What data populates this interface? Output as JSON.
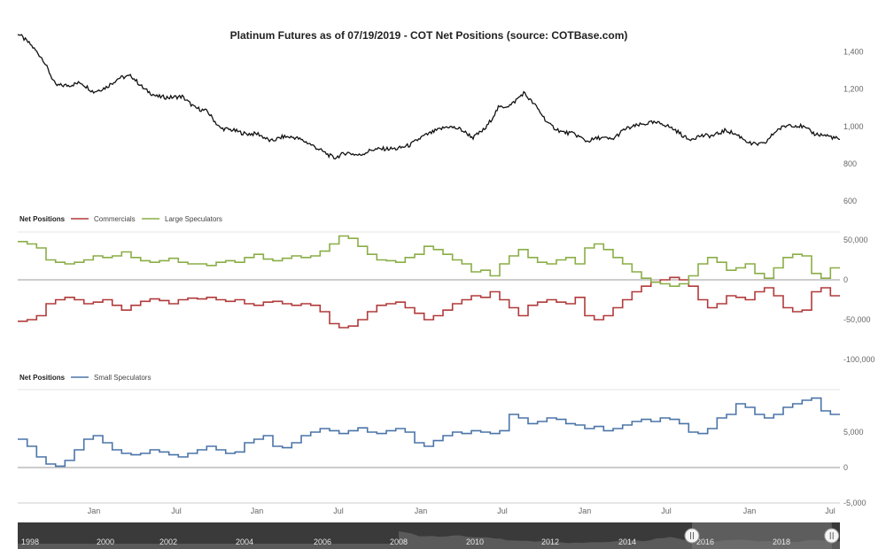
{
  "chart_data": [
    {
      "type": "line",
      "title": "Platinum Futures as of 07/19/2019 - COT Net Positions (source: COTBase.com)",
      "ylim": [
        600,
        1450
      ],
      "y_ticks": [
        "1,400",
        "1,200",
        "1,000",
        "800",
        "600"
      ],
      "y_tick_values": [
        1400,
        1200,
        1000,
        800,
        600
      ],
      "grid": false,
      "series": [
        {
          "color": "#111111",
          "x": [
            2013.0,
            2013.15,
            2013.25,
            2013.33,
            2013.45,
            2013.55,
            2013.65,
            2013.75,
            2013.85,
            2013.95,
            2014.05,
            2014.15,
            2014.25,
            2014.35,
            2014.45,
            2014.55,
            2014.65,
            2014.75,
            2014.85,
            2014.95,
            2015.05,
            2015.15,
            2015.25,
            2015.35,
            2015.45,
            2015.55,
            2015.65,
            2015.75,
            2015.85,
            2015.95,
            2016.05,
            2016.15,
            2016.25,
            2016.35,
            2016.45,
            2016.55,
            2016.65,
            2016.75,
            2016.85,
            2016.95,
            2017.05,
            2017.15,
            2017.25,
            2017.35,
            2017.45,
            2017.55,
            2017.65,
            2017.75,
            2017.85,
            2017.95,
            2018.05,
            2018.15,
            2018.25,
            2018.35,
            2018.45,
            2018.55,
            2018.65,
            2018.75,
            2018.85,
            2018.95,
            2019.05,
            2019.15,
            2019.25,
            2019.35,
            2019.45,
            2019.55
          ],
          "values": [
            1500,
            1440,
            1360,
            1220,
            1220,
            1235,
            1185,
            1210,
            1260,
            1270,
            1200,
            1160,
            1155,
            1160,
            1100,
            1080,
            990,
            980,
            960,
            960,
            920,
            945,
            940,
            910,
            870,
            830,
            860,
            845,
            875,
            880,
            880,
            900,
            945,
            975,
            1000,
            985,
            940,
            990,
            1100,
            1115,
            1180,
            1105,
            1010,
            970,
            960,
            920,
            940,
            930,
            985,
            1005,
            1020,
            1015,
            980,
            930,
            950,
            950,
            980,
            950,
            905,
            905,
            980,
            1010,
            1000,
            960,
            950,
            930
          ]
        }
      ]
    },
    {
      "type": "line",
      "title": "",
      "legend_title": "Net Positions",
      "legend_position": "top-left",
      "ylim": [
        -100000,
        60000
      ],
      "y_ticks": [
        "50,000",
        "0",
        "-50,000",
        "-100,000"
      ],
      "y_tick_values": [
        50000,
        0,
        -50000,
        -100000
      ],
      "zero_line": true,
      "series": [
        {
          "name": "Commercials",
          "color": "#b23a3a",
          "values": [
            -52000,
            -50000,
            -45000,
            -30000,
            -25000,
            -22000,
            -25000,
            -30000,
            -28000,
            -25000,
            -32000,
            -38000,
            -32000,
            -27000,
            -24000,
            -26000,
            -30000,
            -25000,
            -23000,
            -24000,
            -22000,
            -25000,
            -27000,
            -25000,
            -30000,
            -32000,
            -28000,
            -27000,
            -30000,
            -32000,
            -30000,
            -32000,
            -40000,
            -55000,
            -60000,
            -58000,
            -50000,
            -40000,
            -32000,
            -30000,
            -28000,
            -35000,
            -42000,
            -50000,
            -45000,
            -38000,
            -30000,
            -25000,
            -20000,
            -22000,
            -15000,
            -25000,
            -35000,
            -45000,
            -32000,
            -28000,
            -25000,
            -28000,
            -30000,
            -22000,
            -45000,
            -50000,
            -45000,
            -35000,
            -25000,
            -15000,
            -8000,
            -3000,
            0,
            3000,
            0,
            -8000,
            -25000,
            -35000,
            -30000,
            -20000,
            -22000,
            -25000,
            -15000,
            -10000,
            -20000,
            -35000,
            -40000,
            -38000,
            -15000,
            -10000,
            -20000
          ]
        },
        {
          "name": "Large Speculators",
          "color": "#8aae46",
          "values": [
            48000,
            45000,
            40000,
            25000,
            22000,
            20000,
            22000,
            25000,
            30000,
            28000,
            30000,
            35000,
            28000,
            24000,
            22000,
            24000,
            27000,
            22000,
            20000,
            20000,
            18000,
            22000,
            24000,
            22000,
            28000,
            32000,
            26000,
            24000,
            27000,
            30000,
            28000,
            30000,
            36000,
            45000,
            55000,
            52000,
            42000,
            32000,
            25000,
            24000,
            22000,
            28000,
            32000,
            42000,
            38000,
            32000,
            25000,
            20000,
            10000,
            12000,
            5000,
            20000,
            30000,
            38000,
            28000,
            22000,
            20000,
            25000,
            28000,
            20000,
            40000,
            45000,
            38000,
            28000,
            20000,
            10000,
            2000,
            -3000,
            -5000,
            -8000,
            -5000,
            5000,
            20000,
            28000,
            22000,
            12000,
            15000,
            20000,
            8000,
            2000,
            15000,
            28000,
            32000,
            30000,
            8000,
            2000,
            15000
          ]
        }
      ]
    },
    {
      "type": "line",
      "title": "",
      "legend_title": "Net Positions",
      "legend_position": "top-left",
      "ylim": [
        -5000,
        11000
      ],
      "y_ticks": [
        "5,000",
        "0",
        "-5,000"
      ],
      "y_tick_values": [
        5000,
        0,
        -5000
      ],
      "zero_line": true,
      "x_ticks": [
        "Jan",
        "Jul",
        "Jan",
        "Jul",
        "Jan",
        "Jul",
        "Jan",
        "Jul",
        "Jan",
        "Jul"
      ],
      "series": [
        {
          "name": "Small Speculators",
          "color": "#4a74a8",
          "values": [
            4000,
            3000,
            1500,
            500,
            200,
            1000,
            2500,
            4000,
            4500,
            3500,
            2500,
            2000,
            1800,
            2000,
            2500,
            2200,
            1800,
            1500,
            2000,
            2500,
            3000,
            2500,
            2000,
            2200,
            3500,
            4000,
            4500,
            3000,
            2800,
            3500,
            4500,
            5000,
            5500,
            5200,
            4800,
            5200,
            5600,
            5000,
            4800,
            5200,
            5500,
            5000,
            3500,
            3000,
            3800,
            4500,
            5000,
            4800,
            5200,
            5000,
            4800,
            5200,
            7500,
            7000,
            6200,
            6500,
            7000,
            6800,
            6200,
            6000,
            5500,
            5800,
            5200,
            5500,
            6000,
            6500,
            6800,
            6500,
            7000,
            6800,
            6200,
            5000,
            4800,
            5500,
            7000,
            7500,
            9000,
            8500,
            7500,
            7000,
            7500,
            8500,
            9000,
            9500,
            9800,
            8000,
            7500
          ]
        }
      ]
    },
    {
      "type": "area",
      "title": "",
      "role": "navigator",
      "x_ticks": [
        "1998",
        "2000",
        "2002",
        "2004",
        "2006",
        "2008",
        "2010",
        "2012",
        "2014",
        "2016",
        "2018"
      ],
      "selection": [
        0.82,
        0.99
      ]
    }
  ]
}
